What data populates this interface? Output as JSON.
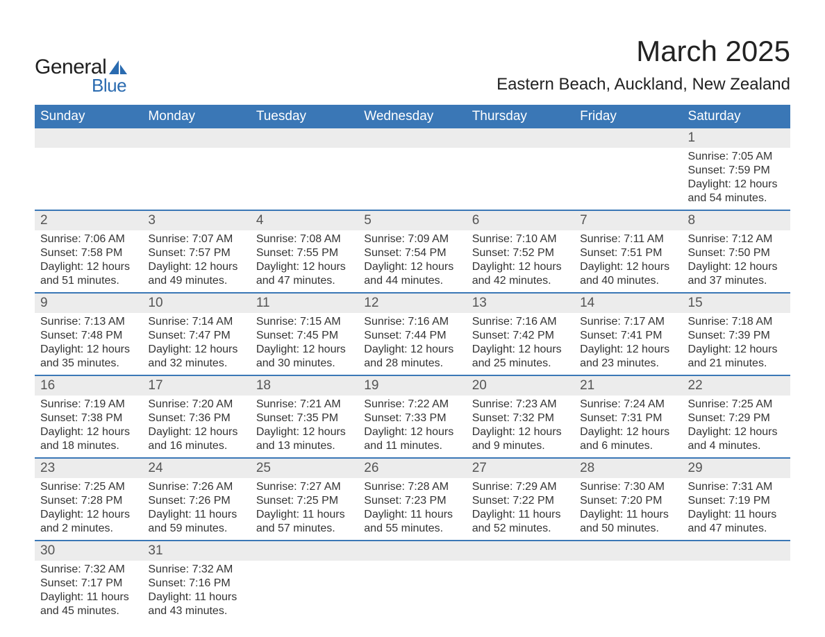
{
  "logo": {
    "text_general": "General",
    "text_blue": "Blue",
    "sail_color": "#2a6bb0"
  },
  "header": {
    "title": "March 2025",
    "location": "Eastern Beach, Auckland, New Zealand"
  },
  "colors": {
    "header_bg": "#3a77b6",
    "header_text": "#ffffff",
    "daynum_bg": "#ececec",
    "divider": "#3a77b6",
    "body_text": "#333333"
  },
  "weekdays": [
    "Sunday",
    "Monday",
    "Tuesday",
    "Wednesday",
    "Thursday",
    "Friday",
    "Saturday"
  ],
  "weeks": [
    [
      null,
      null,
      null,
      null,
      null,
      null,
      {
        "n": "1",
        "sr": "Sunrise: 7:05 AM",
        "ss": "Sunset: 7:59 PM",
        "dl": "Daylight: 12 hours and 54 minutes."
      }
    ],
    [
      {
        "n": "2",
        "sr": "Sunrise: 7:06 AM",
        "ss": "Sunset: 7:58 PM",
        "dl": "Daylight: 12 hours and 51 minutes."
      },
      {
        "n": "3",
        "sr": "Sunrise: 7:07 AM",
        "ss": "Sunset: 7:57 PM",
        "dl": "Daylight: 12 hours and 49 minutes."
      },
      {
        "n": "4",
        "sr": "Sunrise: 7:08 AM",
        "ss": "Sunset: 7:55 PM",
        "dl": "Daylight: 12 hours and 47 minutes."
      },
      {
        "n": "5",
        "sr": "Sunrise: 7:09 AM",
        "ss": "Sunset: 7:54 PM",
        "dl": "Daylight: 12 hours and 44 minutes."
      },
      {
        "n": "6",
        "sr": "Sunrise: 7:10 AM",
        "ss": "Sunset: 7:52 PM",
        "dl": "Daylight: 12 hours and 42 minutes."
      },
      {
        "n": "7",
        "sr": "Sunrise: 7:11 AM",
        "ss": "Sunset: 7:51 PM",
        "dl": "Daylight: 12 hours and 40 minutes."
      },
      {
        "n": "8",
        "sr": "Sunrise: 7:12 AM",
        "ss": "Sunset: 7:50 PM",
        "dl": "Daylight: 12 hours and 37 minutes."
      }
    ],
    [
      {
        "n": "9",
        "sr": "Sunrise: 7:13 AM",
        "ss": "Sunset: 7:48 PM",
        "dl": "Daylight: 12 hours and 35 minutes."
      },
      {
        "n": "10",
        "sr": "Sunrise: 7:14 AM",
        "ss": "Sunset: 7:47 PM",
        "dl": "Daylight: 12 hours and 32 minutes."
      },
      {
        "n": "11",
        "sr": "Sunrise: 7:15 AM",
        "ss": "Sunset: 7:45 PM",
        "dl": "Daylight: 12 hours and 30 minutes."
      },
      {
        "n": "12",
        "sr": "Sunrise: 7:16 AM",
        "ss": "Sunset: 7:44 PM",
        "dl": "Daylight: 12 hours and 28 minutes."
      },
      {
        "n": "13",
        "sr": "Sunrise: 7:16 AM",
        "ss": "Sunset: 7:42 PM",
        "dl": "Daylight: 12 hours and 25 minutes."
      },
      {
        "n": "14",
        "sr": "Sunrise: 7:17 AM",
        "ss": "Sunset: 7:41 PM",
        "dl": "Daylight: 12 hours and 23 minutes."
      },
      {
        "n": "15",
        "sr": "Sunrise: 7:18 AM",
        "ss": "Sunset: 7:39 PM",
        "dl": "Daylight: 12 hours and 21 minutes."
      }
    ],
    [
      {
        "n": "16",
        "sr": "Sunrise: 7:19 AM",
        "ss": "Sunset: 7:38 PM",
        "dl": "Daylight: 12 hours and 18 minutes."
      },
      {
        "n": "17",
        "sr": "Sunrise: 7:20 AM",
        "ss": "Sunset: 7:36 PM",
        "dl": "Daylight: 12 hours and 16 minutes."
      },
      {
        "n": "18",
        "sr": "Sunrise: 7:21 AM",
        "ss": "Sunset: 7:35 PM",
        "dl": "Daylight: 12 hours and 13 minutes."
      },
      {
        "n": "19",
        "sr": "Sunrise: 7:22 AM",
        "ss": "Sunset: 7:33 PM",
        "dl": "Daylight: 12 hours and 11 minutes."
      },
      {
        "n": "20",
        "sr": "Sunrise: 7:23 AM",
        "ss": "Sunset: 7:32 PM",
        "dl": "Daylight: 12 hours and 9 minutes."
      },
      {
        "n": "21",
        "sr": "Sunrise: 7:24 AM",
        "ss": "Sunset: 7:31 PM",
        "dl": "Daylight: 12 hours and 6 minutes."
      },
      {
        "n": "22",
        "sr": "Sunrise: 7:25 AM",
        "ss": "Sunset: 7:29 PM",
        "dl": "Daylight: 12 hours and 4 minutes."
      }
    ],
    [
      {
        "n": "23",
        "sr": "Sunrise: 7:25 AM",
        "ss": "Sunset: 7:28 PM",
        "dl": "Daylight: 12 hours and 2 minutes."
      },
      {
        "n": "24",
        "sr": "Sunrise: 7:26 AM",
        "ss": "Sunset: 7:26 PM",
        "dl": "Daylight: 11 hours and 59 minutes."
      },
      {
        "n": "25",
        "sr": "Sunrise: 7:27 AM",
        "ss": "Sunset: 7:25 PM",
        "dl": "Daylight: 11 hours and 57 minutes."
      },
      {
        "n": "26",
        "sr": "Sunrise: 7:28 AM",
        "ss": "Sunset: 7:23 PM",
        "dl": "Daylight: 11 hours and 55 minutes."
      },
      {
        "n": "27",
        "sr": "Sunrise: 7:29 AM",
        "ss": "Sunset: 7:22 PM",
        "dl": "Daylight: 11 hours and 52 minutes."
      },
      {
        "n": "28",
        "sr": "Sunrise: 7:30 AM",
        "ss": "Sunset: 7:20 PM",
        "dl": "Daylight: 11 hours and 50 minutes."
      },
      {
        "n": "29",
        "sr": "Sunrise: 7:31 AM",
        "ss": "Sunset: 7:19 PM",
        "dl": "Daylight: 11 hours and 47 minutes."
      }
    ],
    [
      {
        "n": "30",
        "sr": "Sunrise: 7:32 AM",
        "ss": "Sunset: 7:17 PM",
        "dl": "Daylight: 11 hours and 45 minutes."
      },
      {
        "n": "31",
        "sr": "Sunrise: 7:32 AM",
        "ss": "Sunset: 7:16 PM",
        "dl": "Daylight: 11 hours and 43 minutes."
      },
      null,
      null,
      null,
      null,
      null
    ]
  ]
}
